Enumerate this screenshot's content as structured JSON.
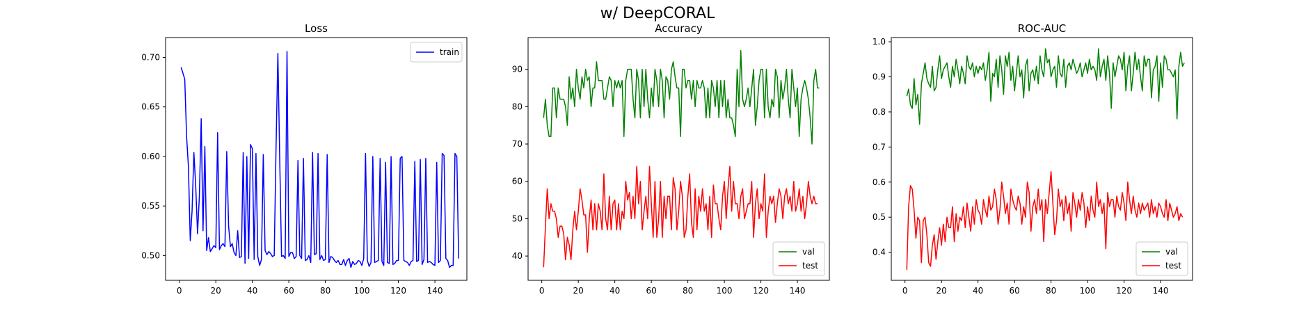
{
  "figure": {
    "suptitle": "w/ DeepCORAL"
  },
  "chart_data": [
    {
      "type": "line",
      "title": "Loss",
      "xlabel": "",
      "ylabel": "",
      "xlim": [
        -7.5,
        157.5
      ],
      "ylim": [
        0.475,
        0.72
      ],
      "xticks": [
        0,
        20,
        40,
        60,
        80,
        100,
        120,
        140
      ],
      "yticks": [
        0.5,
        0.55,
        0.6,
        0.65,
        0.7
      ],
      "ytick_labels": [
        "0.50",
        "0.55",
        "0.60",
        "0.65",
        "0.70"
      ],
      "legend_position": "upper right",
      "grid": false,
      "series": [
        {
          "name": "train",
          "color": "#0000ff",
          "x_start": 1,
          "values": [
            0.69,
            0.684,
            0.678,
            0.62,
            0.59,
            0.515,
            0.545,
            0.604,
            0.57,
            0.522,
            0.56,
            0.638,
            0.525,
            0.61,
            0.505,
            0.518,
            0.504,
            0.507,
            0.51,
            0.508,
            0.624,
            0.506,
            0.51,
            0.512,
            0.509,
            0.605,
            0.53,
            0.509,
            0.512,
            0.503,
            0.5,
            0.525,
            0.498,
            0.499,
            0.604,
            0.492,
            0.6,
            0.497,
            0.612,
            0.608,
            0.496,
            0.603,
            0.499,
            0.49,
            0.496,
            0.602,
            0.505,
            0.501,
            0.504,
            0.502,
            0.499,
            0.5,
            0.61,
            0.704,
            0.598,
            0.499,
            0.5,
            0.497,
            0.706,
            0.499,
            0.503,
            0.503,
            0.497,
            0.499,
            0.596,
            0.5,
            0.497,
            0.598,
            0.495,
            0.496,
            0.5,
            0.493,
            0.604,
            0.501,
            0.502,
            0.603,
            0.496,
            0.5,
            0.495,
            0.496,
            0.602,
            0.493,
            0.499,
            0.498,
            0.495,
            0.493,
            0.495,
            0.491,
            0.491,
            0.496,
            0.49,
            0.495,
            0.497,
            0.488,
            0.494,
            0.491,
            0.492,
            0.495,
            0.494,
            0.49,
            0.497,
            0.603,
            0.495,
            0.489,
            0.493,
            0.6,
            0.493,
            0.494,
            0.495,
            0.598,
            0.494,
            0.49,
            0.594,
            0.493,
            0.492,
            0.6,
            0.491,
            0.492,
            0.495,
            0.495,
            0.598,
            0.6,
            0.495,
            0.494,
            0.493,
            0.49,
            0.494,
            0.495,
            0.595,
            0.494,
            0.495,
            0.597,
            0.491,
            0.496,
            0.598,
            0.493,
            0.494,
            0.493,
            0.491,
            0.49,
            0.594,
            0.493,
            0.495,
            0.603,
            0.601,
            0.497,
            0.495,
            0.488,
            0.49,
            0.49,
            0.603,
            0.6,
            0.497
          ]
        }
      ]
    },
    {
      "type": "line",
      "title": "Accuracy",
      "xlabel": "",
      "ylabel": "",
      "xlim": [
        -7.5,
        157.5
      ],
      "ylim": [
        33.5,
        98.5
      ],
      "xticks": [
        0,
        20,
        40,
        60,
        80,
        100,
        120,
        140
      ],
      "yticks": [
        40,
        50,
        60,
        70,
        80,
        90
      ],
      "ytick_labels": [
        "40",
        "50",
        "60",
        "70",
        "80",
        "90"
      ],
      "legend_position": "lower right",
      "grid": false,
      "series": [
        {
          "name": "val",
          "color": "#008000",
          "x_start": 1,
          "values": [
            77,
            82,
            75,
            72,
            72,
            85,
            85,
            77,
            85,
            82,
            82,
            82,
            80,
            75,
            88,
            82,
            85,
            80,
            90,
            85,
            82,
            88,
            85,
            90,
            87,
            88,
            80,
            85,
            85,
            92,
            87,
            87,
            87,
            82,
            82,
            85,
            88,
            87,
            80,
            87,
            85,
            87,
            85,
            87,
            72,
            87,
            90,
            90,
            90,
            82,
            77,
            90,
            87,
            77,
            90,
            80,
            90,
            82,
            77,
            85,
            80,
            90,
            87,
            80,
            90,
            87,
            77,
            88,
            87,
            82,
            90,
            92,
            88,
            85,
            85,
            72,
            90,
            90,
            85,
            87,
            87,
            82,
            87,
            80,
            87,
            85,
            85,
            87,
            85,
            77,
            85,
            77,
            87,
            85,
            80,
            87,
            77,
            87,
            80,
            87,
            77,
            82,
            77,
            77,
            75,
            72,
            90,
            80,
            95,
            82,
            80,
            82,
            85,
            80,
            85,
            90,
            75,
            80,
            87,
            90,
            90,
            77,
            90,
            80,
            77,
            82,
            80,
            90,
            88,
            77,
            87,
            82,
            85,
            90,
            82,
            77,
            90,
            85,
            80,
            85,
            72,
            82,
            85,
            87,
            85,
            82,
            77,
            70,
            87,
            90,
            85,
            85
          ]
        },
        {
          "name": "test",
          "color": "#ff0000",
          "x_start": 1,
          "values": [
            37,
            48,
            58,
            50,
            54,
            52,
            52,
            50,
            45,
            48,
            48,
            46,
            39,
            45,
            43,
            39,
            47,
            52,
            47,
            52,
            58,
            55,
            51,
            51,
            41,
            50,
            55,
            47,
            54,
            47,
            54,
            52,
            47,
            62,
            50,
            47,
            56,
            47,
            54,
            55,
            47,
            54,
            47,
            52,
            50,
            60,
            55,
            57,
            50,
            56,
            50,
            64,
            54,
            60,
            47,
            52,
            56,
            50,
            64,
            54,
            45,
            60,
            45,
            50,
            60,
            45,
            56,
            50,
            56,
            56,
            47,
            61,
            58,
            47,
            52,
            60,
            56,
            45,
            47,
            56,
            62,
            49,
            45,
            58,
            47,
            56,
            52,
            58,
            52,
            54,
            47,
            56,
            45,
            59,
            54,
            54,
            50,
            47,
            56,
            60,
            50,
            58,
            64,
            52,
            60,
            54,
            54,
            50,
            56,
            58,
            50,
            52,
            54,
            54,
            60,
            45,
            54,
            58,
            50,
            54,
            52,
            62,
            45,
            52,
            56,
            54,
            56,
            49,
            54,
            58,
            56,
            50,
            56,
            58,
            54,
            56,
            52,
            60,
            52,
            54,
            58,
            52,
            56,
            50,
            54,
            60,
            56,
            54,
            56,
            54,
            54
          ]
        }
      ]
    },
    {
      "type": "line",
      "title": "ROC-AUC",
      "xlabel": "",
      "ylabel": "",
      "xlim": [
        -7.5,
        157.5
      ],
      "ylim": [
        0.32,
        1.012
      ],
      "xticks": [
        0,
        20,
        40,
        60,
        80,
        100,
        120,
        140
      ],
      "yticks": [
        0.4,
        0.5,
        0.6,
        0.7,
        0.8,
        0.9,
        1.0
      ],
      "ytick_labels": [
        "0.4",
        "0.5",
        "0.6",
        "0.7",
        "0.8",
        "0.9",
        "1.0"
      ],
      "legend_position": "lower right",
      "grid": false,
      "series": [
        {
          "name": "val",
          "color": "#008000",
          "x_start": 1,
          "values": [
            0.845,
            0.865,
            0.82,
            0.81,
            0.895,
            0.82,
            0.85,
            0.765,
            0.88,
            0.91,
            0.94,
            0.895,
            0.88,
            0.87,
            0.93,
            0.86,
            0.87,
            0.92,
            0.96,
            0.895,
            0.92,
            0.93,
            0.94,
            0.9,
            0.87,
            0.93,
            0.9,
            0.95,
            0.92,
            0.88,
            0.93,
            0.91,
            0.88,
            0.96,
            0.93,
            0.92,
            0.94,
            0.9,
            0.93,
            0.91,
            0.93,
            0.92,
            0.94,
            0.89,
            0.92,
            0.97,
            0.83,
            0.91,
            0.9,
            0.95,
            0.87,
            0.96,
            0.92,
            0.85,
            0.96,
            0.93,
            0.97,
            0.89,
            0.93,
            0.86,
            0.91,
            0.96,
            0.9,
            0.92,
            0.84,
            0.93,
            0.95,
            0.86,
            0.91,
            0.92,
            0.89,
            0.93,
            0.88,
            0.96,
            0.92,
            0.9,
            0.98,
            0.94,
            0.95,
            0.9,
            0.92,
            0.93,
            0.87,
            0.96,
            0.91,
            0.9,
            0.95,
            0.87,
            0.93,
            0.94,
            0.92,
            0.95,
            0.93,
            0.91,
            0.92,
            0.94,
            0.9,
            0.92,
            0.94,
            0.91,
            0.95,
            0.92,
            0.93,
            0.92,
            0.89,
            0.98,
            0.9,
            0.93,
            0.95,
            0.89,
            0.96,
            0.91,
            0.81,
            0.94,
            0.9,
            0.93,
            0.96,
            0.95,
            0.92,
            0.97,
            0.86,
            0.93,
            0.96,
            0.86,
            0.91,
            0.97,
            0.92,
            0.95,
            0.9,
            0.86,
            0.96,
            0.93,
            0.95,
            0.95,
            0.84,
            0.92,
            0.93,
            0.96,
            0.83,
            0.94,
            0.87,
            0.96,
            0.95,
            0.92,
            0.92,
            0.91,
            0.9,
            0.92,
            0.78,
            0.93,
            0.97,
            0.93,
            0.94
          ]
        },
        {
          "name": "test",
          "color": "#ff0000",
          "x_start": 1,
          "values": [
            0.35,
            0.53,
            0.59,
            0.58,
            0.52,
            0.44,
            0.5,
            0.49,
            0.37,
            0.49,
            0.5,
            0.45,
            0.37,
            0.36,
            0.42,
            0.45,
            0.38,
            0.43,
            0.47,
            0.42,
            0.48,
            0.43,
            0.5,
            0.47,
            0.47,
            0.53,
            0.43,
            0.51,
            0.46,
            0.5,
            0.49,
            0.53,
            0.47,
            0.54,
            0.5,
            0.46,
            0.53,
            0.48,
            0.55,
            0.52,
            0.51,
            0.48,
            0.55,
            0.52,
            0.5,
            0.56,
            0.52,
            0.53,
            0.58,
            0.55,
            0.48,
            0.52,
            0.6,
            0.56,
            0.51,
            0.54,
            0.48,
            0.58,
            0.55,
            0.53,
            0.52,
            0.56,
            0.54,
            0.48,
            0.53,
            0.5,
            0.6,
            0.57,
            0.46,
            0.53,
            0.55,
            0.51,
            0.58,
            0.52,
            0.55,
            0.43,
            0.55,
            0.51,
            0.57,
            0.63,
            0.54,
            0.45,
            0.49,
            0.58,
            0.53,
            0.55,
            0.49,
            0.56,
            0.51,
            0.54,
            0.46,
            0.57,
            0.54,
            0.5,
            0.55,
            0.52,
            0.57,
            0.54,
            0.47,
            0.53,
            0.49,
            0.56,
            0.52,
            0.5,
            0.6,
            0.53,
            0.55,
            0.51,
            0.54,
            0.41,
            0.57,
            0.53,
            0.55,
            0.55,
            0.5,
            0.56,
            0.53,
            0.52,
            0.57,
            0.54,
            0.49,
            0.6,
            0.55,
            0.51,
            0.56,
            0.52,
            0.5,
            0.54,
            0.51,
            0.54,
            0.52,
            0.53,
            0.54,
            0.5,
            0.55,
            0.51,
            0.53,
            0.5,
            0.54,
            0.53,
            0.51,
            0.5,
            0.55,
            0.49,
            0.54,
            0.52,
            0.5,
            0.51,
            0.53,
            0.49,
            0.51,
            0.5
          ]
        }
      ]
    }
  ]
}
